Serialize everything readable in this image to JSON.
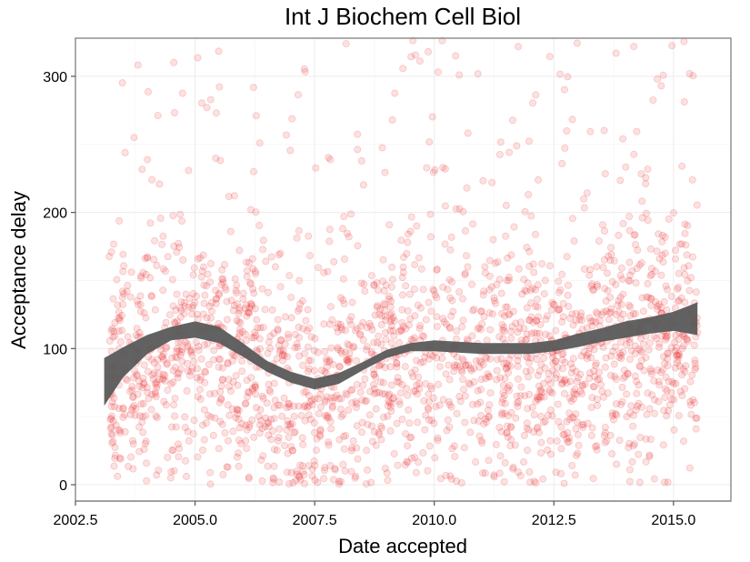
{
  "chart_data": {
    "type": "scatter",
    "title": "Int J Biochem Cell Biol",
    "xlabel": "Date accepted",
    "ylabel": "Acceptance delay",
    "xlim": [
      2002.5,
      2016.2
    ],
    "ylim": [
      -12,
      328
    ],
    "x_ticks": [
      2002.5,
      2005.0,
      2007.5,
      2010.0,
      2012.5,
      2015.0
    ],
    "x_tick_labels": [
      "2002.5",
      "2005.0",
      "2007.5",
      "2010.0",
      "2012.5",
      "2015.0"
    ],
    "y_ticks": [
      0,
      100,
      200,
      300
    ],
    "y_tick_labels": [
      "0",
      "100",
      "200",
      "300"
    ],
    "grid": true,
    "point_color": "#e8151b",
    "smooth_color": "#5a5a5a",
    "scatter_summary": {
      "x_range": [
        2003.2,
        2015.5
      ],
      "y_range": [
        0,
        328
      ],
      "typical_y_range": [
        20,
        200
      ],
      "approx_points": 2200
    },
    "smooth": {
      "x": [
        2003.1,
        2003.5,
        2004.0,
        2004.5,
        2005.0,
        2005.5,
        2006.0,
        2006.5,
        2007.0,
        2007.5,
        2008.0,
        2008.5,
        2009.0,
        2009.5,
        2010.0,
        2010.5,
        2011.0,
        2011.5,
        2012.0,
        2012.5,
        2013.0,
        2013.5,
        2014.0,
        2014.5,
        2015.0,
        2015.5
      ],
      "y": [
        75,
        90,
        103,
        111,
        114,
        110,
        99,
        87,
        79,
        74,
        78,
        87,
        96,
        101,
        102,
        101,
        100,
        100,
        100,
        102,
        106,
        110,
        114,
        117,
        120,
        122
      ],
      "ci_lower": [
        58,
        79,
        96,
        106,
        108,
        104,
        94,
        83,
        75,
        70,
        74,
        84,
        93,
        98,
        98,
        97,
        96,
        96,
        96,
        98,
        101,
        105,
        108,
        111,
        113,
        110
      ],
      "ci_upper": [
        93,
        101,
        110,
        116,
        120,
        116,
        104,
        91,
        83,
        78,
        82,
        90,
        99,
        104,
        106,
        105,
        104,
        104,
        104,
        106,
        111,
        115,
        120,
        123,
        127,
        134
      ]
    }
  }
}
